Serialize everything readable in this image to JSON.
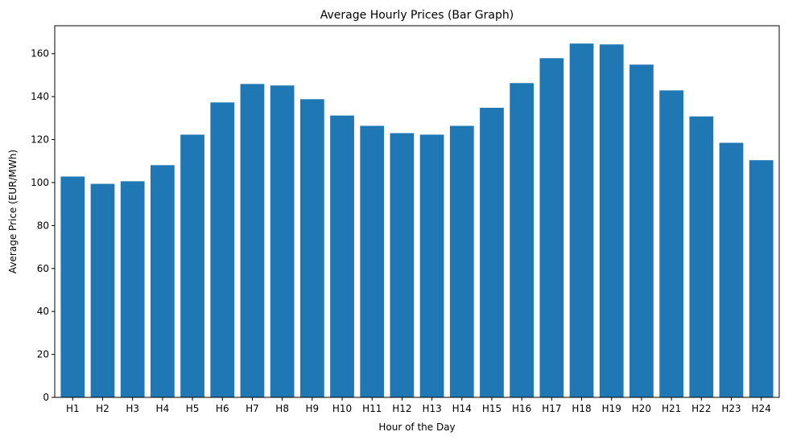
{
  "chart_data": {
    "type": "bar",
    "title": "Average Hourly Prices (Bar Graph)",
    "xlabel": "Hour of the Day",
    "ylabel": "Average Price (EUR/MWh)",
    "categories": [
      "H1",
      "H2",
      "H3",
      "H4",
      "H5",
      "H6",
      "H7",
      "H8",
      "H9",
      "H10",
      "H11",
      "H12",
      "H13",
      "H14",
      "H15",
      "H16",
      "H17",
      "H18",
      "H19",
      "H20",
      "H21",
      "H22",
      "H23",
      "H24"
    ],
    "values": [
      102.8,
      99.4,
      100.6,
      108.1,
      122.3,
      137.3,
      145.9,
      145.2,
      138.8,
      131.2,
      126.4,
      123.0,
      122.3,
      126.4,
      134.8,
      146.3,
      157.9,
      164.7,
      164.3,
      154.9,
      142.9,
      130.8,
      118.5,
      110.4
    ],
    "yticks": [
      0,
      20,
      40,
      60,
      80,
      100,
      120,
      140,
      160
    ],
    "ylim": [
      0,
      173
    ],
    "grid": false,
    "bar_color": "#1f77b4"
  }
}
